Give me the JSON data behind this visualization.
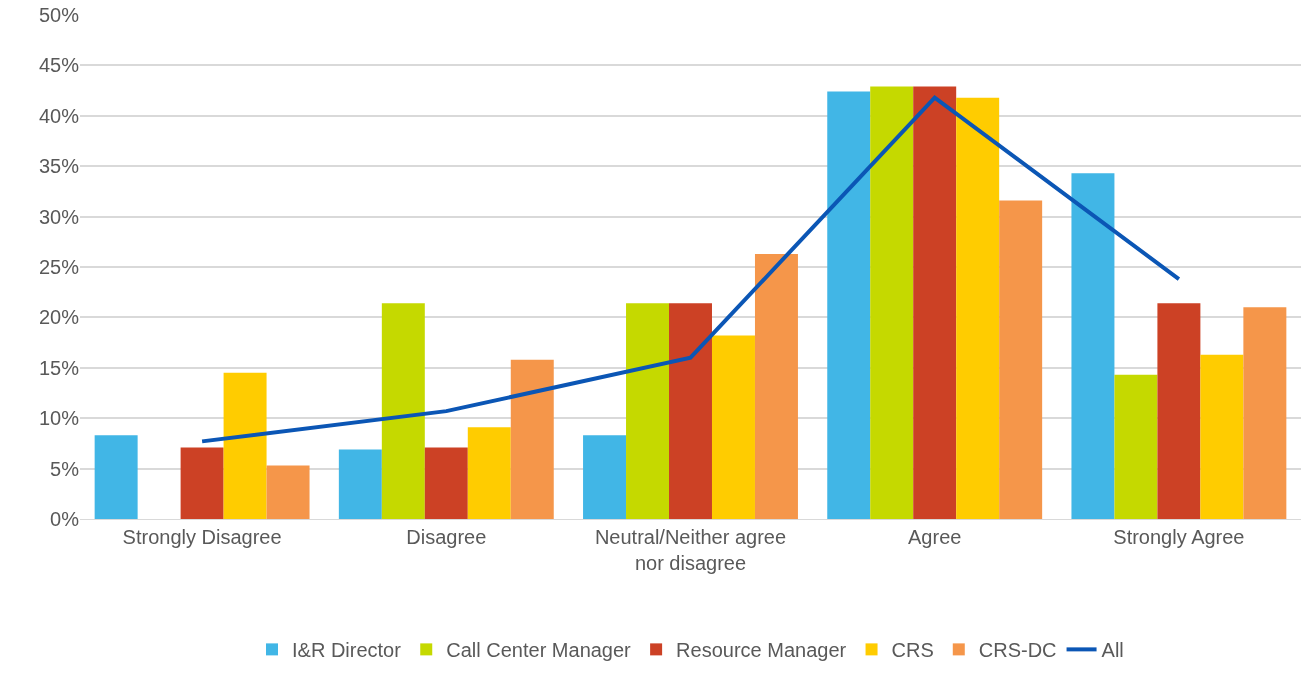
{
  "chart_data": {
    "type": "bar",
    "categories": [
      "Strongly Disagree",
      "Disagree",
      "Neutral/Neither agree nor disagree",
      "Agree",
      "Strongly Agree"
    ],
    "series": [
      {
        "name": "I&R Director",
        "color": "#41b6e6",
        "values": [
          8.3,
          6.9,
          8.3,
          42.4,
          34.3
        ]
      },
      {
        "name": "Call Center Manager",
        "color": "#c5d900",
        "values": [
          0,
          21.4,
          21.4,
          42.9,
          14.3
        ]
      },
      {
        "name": "Resource Manager",
        "color": "#cc4125",
        "values": [
          7.1,
          7.1,
          21.4,
          42.9,
          21.4
        ]
      },
      {
        "name": "CRS",
        "color": "#ffcc00",
        "values": [
          14.5,
          9.1,
          18.2,
          41.8,
          16.3
        ]
      },
      {
        "name": "CRS-DC",
        "color": "#f5964a",
        "values": [
          5.3,
          15.8,
          26.3,
          31.6,
          21.0
        ]
      },
      {
        "name": "All",
        "color": "#0b56b5",
        "type": "line",
        "values": [
          7.7,
          10.7,
          16.0,
          41.8,
          23.8
        ]
      }
    ],
    "ylim": [
      0,
      50
    ],
    "yticks": [
      {
        "value": 0,
        "label": "0%"
      },
      {
        "value": 5,
        "label": "5%"
      },
      {
        "value": 10,
        "label": "10%"
      },
      {
        "value": 15,
        "label": "15%"
      },
      {
        "value": 20,
        "label": "20%"
      },
      {
        "value": 25,
        "label": "25%"
      },
      {
        "value": 30,
        "label": "30%"
      },
      {
        "value": 35,
        "label": "35%"
      },
      {
        "value": 40,
        "label": "40%"
      },
      {
        "value": 45,
        "label": "45%"
      },
      {
        "value": 50,
        "label": "50%"
      }
    ],
    "grid": "y",
    "legend": "bottom",
    "marker": "none",
    "line_style": "solid"
  }
}
